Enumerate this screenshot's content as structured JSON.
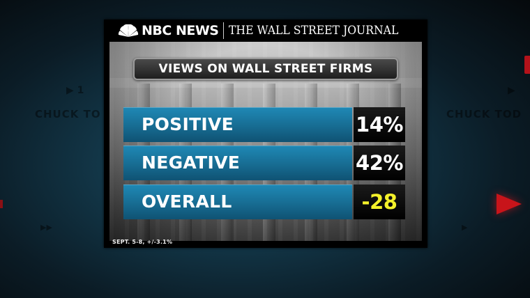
{
  "colors": {
    "row_blue": "#1a7aa6",
    "value_white": "#ffffff",
    "value_highlight": "#f4f12a"
  },
  "masthead": {
    "logo_icon": "peacock-icon",
    "nbc": "NBC NEWS",
    "wsj": "THE WALL STREET JOURNAL"
  },
  "title": "VIEWS ON WALL STREET FIRMS",
  "rows": [
    {
      "label": "POSITIVE",
      "value": "14%",
      "highlight": false
    },
    {
      "label": "NEGATIVE",
      "value": "42%",
      "highlight": false
    },
    {
      "label": "OVERALL",
      "value": "-28",
      "highlight": true
    }
  ],
  "footnote": "SEPT. 5-8, +/-3.1%",
  "background": {
    "left_text": "CHUCK TO",
    "right_text": "CHUCK TOD"
  }
}
